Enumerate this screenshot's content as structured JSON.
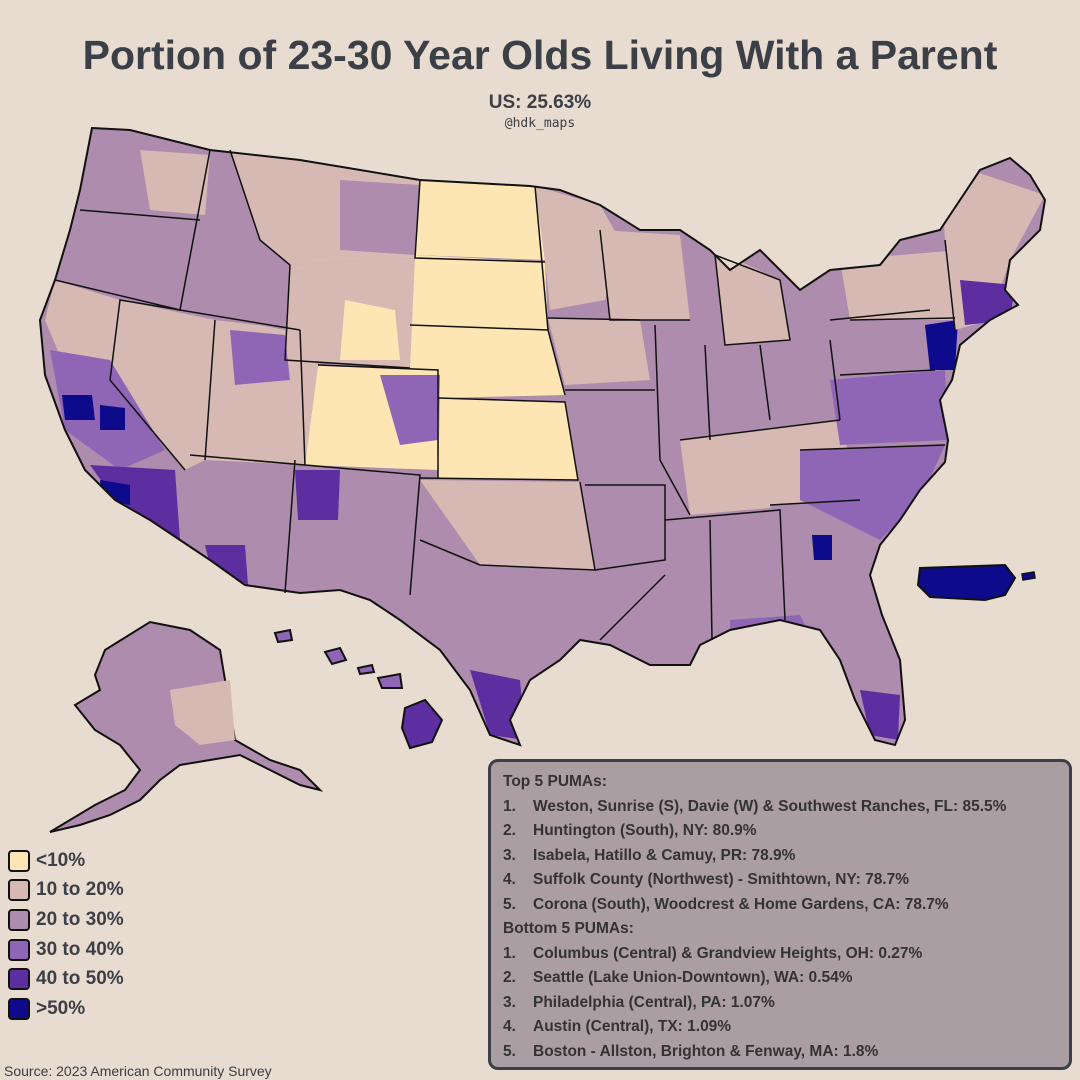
{
  "title": "Portion of 23-30 Year Olds Living With a Parent",
  "subtitle": "US: 25.63%",
  "handle": "@hdk_maps",
  "legend": [
    {
      "label": "<10%",
      "color": "#fde6b4"
    },
    {
      "label": "10 to 20%",
      "color": "#d7b9b4"
    },
    {
      "label": "20 to 30%",
      "color": "#ad8cad"
    },
    {
      "label": "30 to 40%",
      "color": "#8f66b5"
    },
    {
      "label": "40 to 50%",
      "color": "#5d2ea0"
    },
    {
      "label": ">50%",
      "color": "#0d0a8c"
    }
  ],
  "source": "Source: 2023 American Community Survey",
  "top5": {
    "heading": "Top 5 PUMAs:",
    "items": [
      {
        "num": "1.",
        "text": "Weston, Sunrise (S), Davie (W) & Southwest Ranches, FL: 85.5%"
      },
      {
        "num": "2.",
        "text": "Huntington (South), NY: 80.9%"
      },
      {
        "num": "3.",
        "text": "Isabela, Hatillo & Camuy, PR: 78.9%"
      },
      {
        "num": "4.",
        "text": "Suffolk County (Northwest) - Smithtown, NY: 78.7%"
      },
      {
        "num": "5.",
        "text": "Corona (South), Woodcrest & Home Gardens, CA: 78.7%"
      }
    ]
  },
  "bottom5": {
    "heading": "Bottom 5 PUMAs:",
    "items": [
      {
        "num": "1.",
        "text": "Columbus (Central) & Grandview Heights, OH: 0.27%"
      },
      {
        "num": "2.",
        "text": "Seattle (Lake Union-Downtown), WA: 0.54%"
      },
      {
        "num": "3.",
        "text": "Philadelphia (Central), PA: 1.07%"
      },
      {
        "num": "4.",
        "text": "Austin (Central), TX: 1.09%"
      },
      {
        "num": "5.",
        "text": "Boston - Allston, Brighton & Fenway, MA: 1.8%"
      }
    ]
  },
  "colors": {
    "background": "#e8dbcf",
    "panel": "#ab9ea3",
    "text": "#3b3f47",
    "border": "#111111"
  }
}
